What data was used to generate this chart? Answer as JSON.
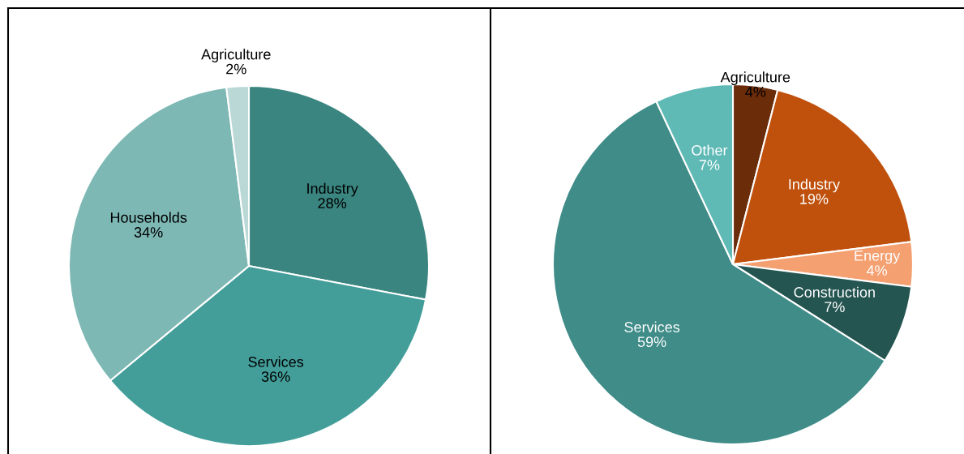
{
  "chart_data": [
    {
      "type": "pie",
      "categories": [
        "Industry",
        "Services",
        "Households",
        "Agriculture"
      ],
      "values": [
        28,
        36,
        34,
        2
      ],
      "value_labels": [
        "28%",
        "36%",
        "34%",
        "2%"
      ],
      "colors": [
        "#3a8580",
        "#439e9a",
        "#7db8b4",
        "#b9d8d6"
      ]
    },
    {
      "type": "pie",
      "categories": [
        "Agriculture",
        "Industry",
        "Energy",
        "Construction",
        "Services",
        "Other"
      ],
      "values": [
        4,
        19,
        4,
        7,
        59,
        7
      ],
      "value_labels": [
        "4%",
        "19%",
        "4%",
        "7%",
        "59%",
        "7%"
      ],
      "colors": [
        "#6b2c0a",
        "#c0510d",
        "#f4a070",
        "#245550",
        "#3f8c88",
        "#5fbab6"
      ]
    }
  ]
}
